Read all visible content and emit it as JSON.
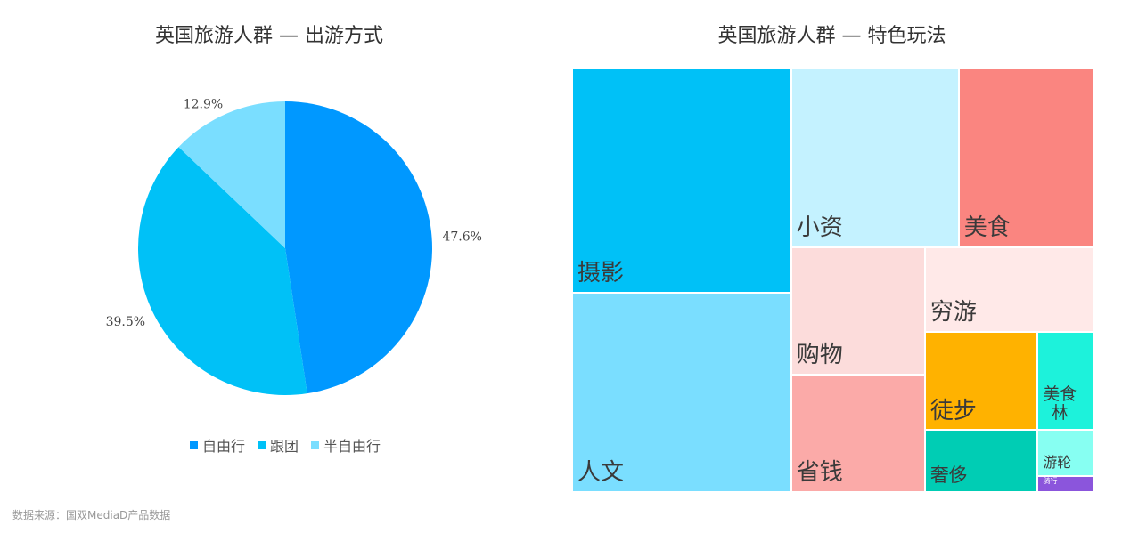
{
  "source": "数据来源：国双MediaD产品数据",
  "legend_entries": [
    "自由行",
    "跟团",
    "半自由行"
  ],
  "chart_data": [
    {
      "type": "pie",
      "title": "英国旅游人群 — 出游方式",
      "categories": [
        "自由行",
        "跟团",
        "半自由行"
      ],
      "values": [
        47.6,
        39.5,
        12.9
      ],
      "value_labels": [
        "47.6%",
        "39.5%",
        "12.9%"
      ],
      "colors": [
        "#0098FF",
        "#00C1F7",
        "#7ADEFF"
      ],
      "legend": "bottom"
    },
    {
      "type": "treemap",
      "title": "英国旅游人群 — 特色玩法",
      "categories": [
        "摄影",
        "人文",
        "小资",
        "美食",
        "购物",
        "省钱",
        "穷游",
        "徒步",
        "奢侈",
        "美食林",
        "游轮",
        "骑行"
      ],
      "labels": [
        "摄影",
        "人文",
        "小资",
        "美食",
        "购物",
        "省钱",
        "穷游",
        "徒步",
        "奢侈",
        "美食\n林",
        "游轮",
        "骑行"
      ],
      "values": [
        0.226,
        0.2,
        0.138,
        0.111,
        0.078,
        0.072,
        0.065,
        0.051,
        0.032,
        0.025,
        0.012,
        0.004
      ],
      "colors": [
        "#00C1F7",
        "#7ADEFF",
        "#C4F2FF",
        "#FA8580",
        "#FCDCDB",
        "#FBAAA8",
        "#FFE9E8",
        "#FFB200",
        "#00CDB4",
        "#1DF2DB",
        "#87FFF2",
        "#8B55DC"
      ]
    }
  ]
}
